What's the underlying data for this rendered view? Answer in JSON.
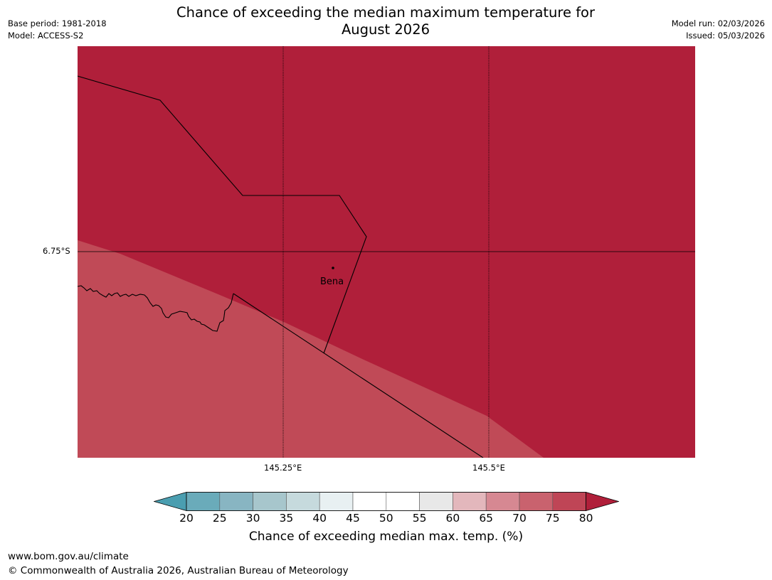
{
  "title_line1": "Chance of exceeding the median maximum temperature for",
  "title_line2": "August 2026",
  "meta": {
    "base_period": "Base period: 1981-2018",
    "model": "Model: ACCESS-S2",
    "model_run": "Model run: 02/03/2026",
    "issued": "Issued: 05/03/2026"
  },
  "map": {
    "lat_label": "6.75°S",
    "lon_labels": [
      "145.25°E",
      "145.5°E"
    ],
    "place": "Bena",
    "colors": {
      "high_category": "#b01f3a",
      "lower_category": "#c04a57",
      "lines": "#000000"
    }
  },
  "colorbar": {
    "ticks": [
      "20",
      "25",
      "30",
      "35",
      "40",
      "45",
      "50",
      "55",
      "60",
      "65",
      "70",
      "75",
      "80"
    ],
    "under_color": "#4a9eb0",
    "over_color": "#b01f3a",
    "bin_colors": [
      "#6aabba",
      "#88b5c2",
      "#a7c6cc",
      "#c6dadd",
      "#e8f0f2",
      "#ffffff",
      "#ffffff",
      "#e8e8e8",
      "#e3b7bc",
      "#d68892",
      "#c9626e",
      "#bf4556"
    ],
    "label": "Chance of exceeding median max. temp. (%)"
  },
  "footer": {
    "url": "www.bom.gov.au/climate",
    "copyright": "© Commonwealth of Australia 2026, Australian Bureau of Meteorology"
  }
}
